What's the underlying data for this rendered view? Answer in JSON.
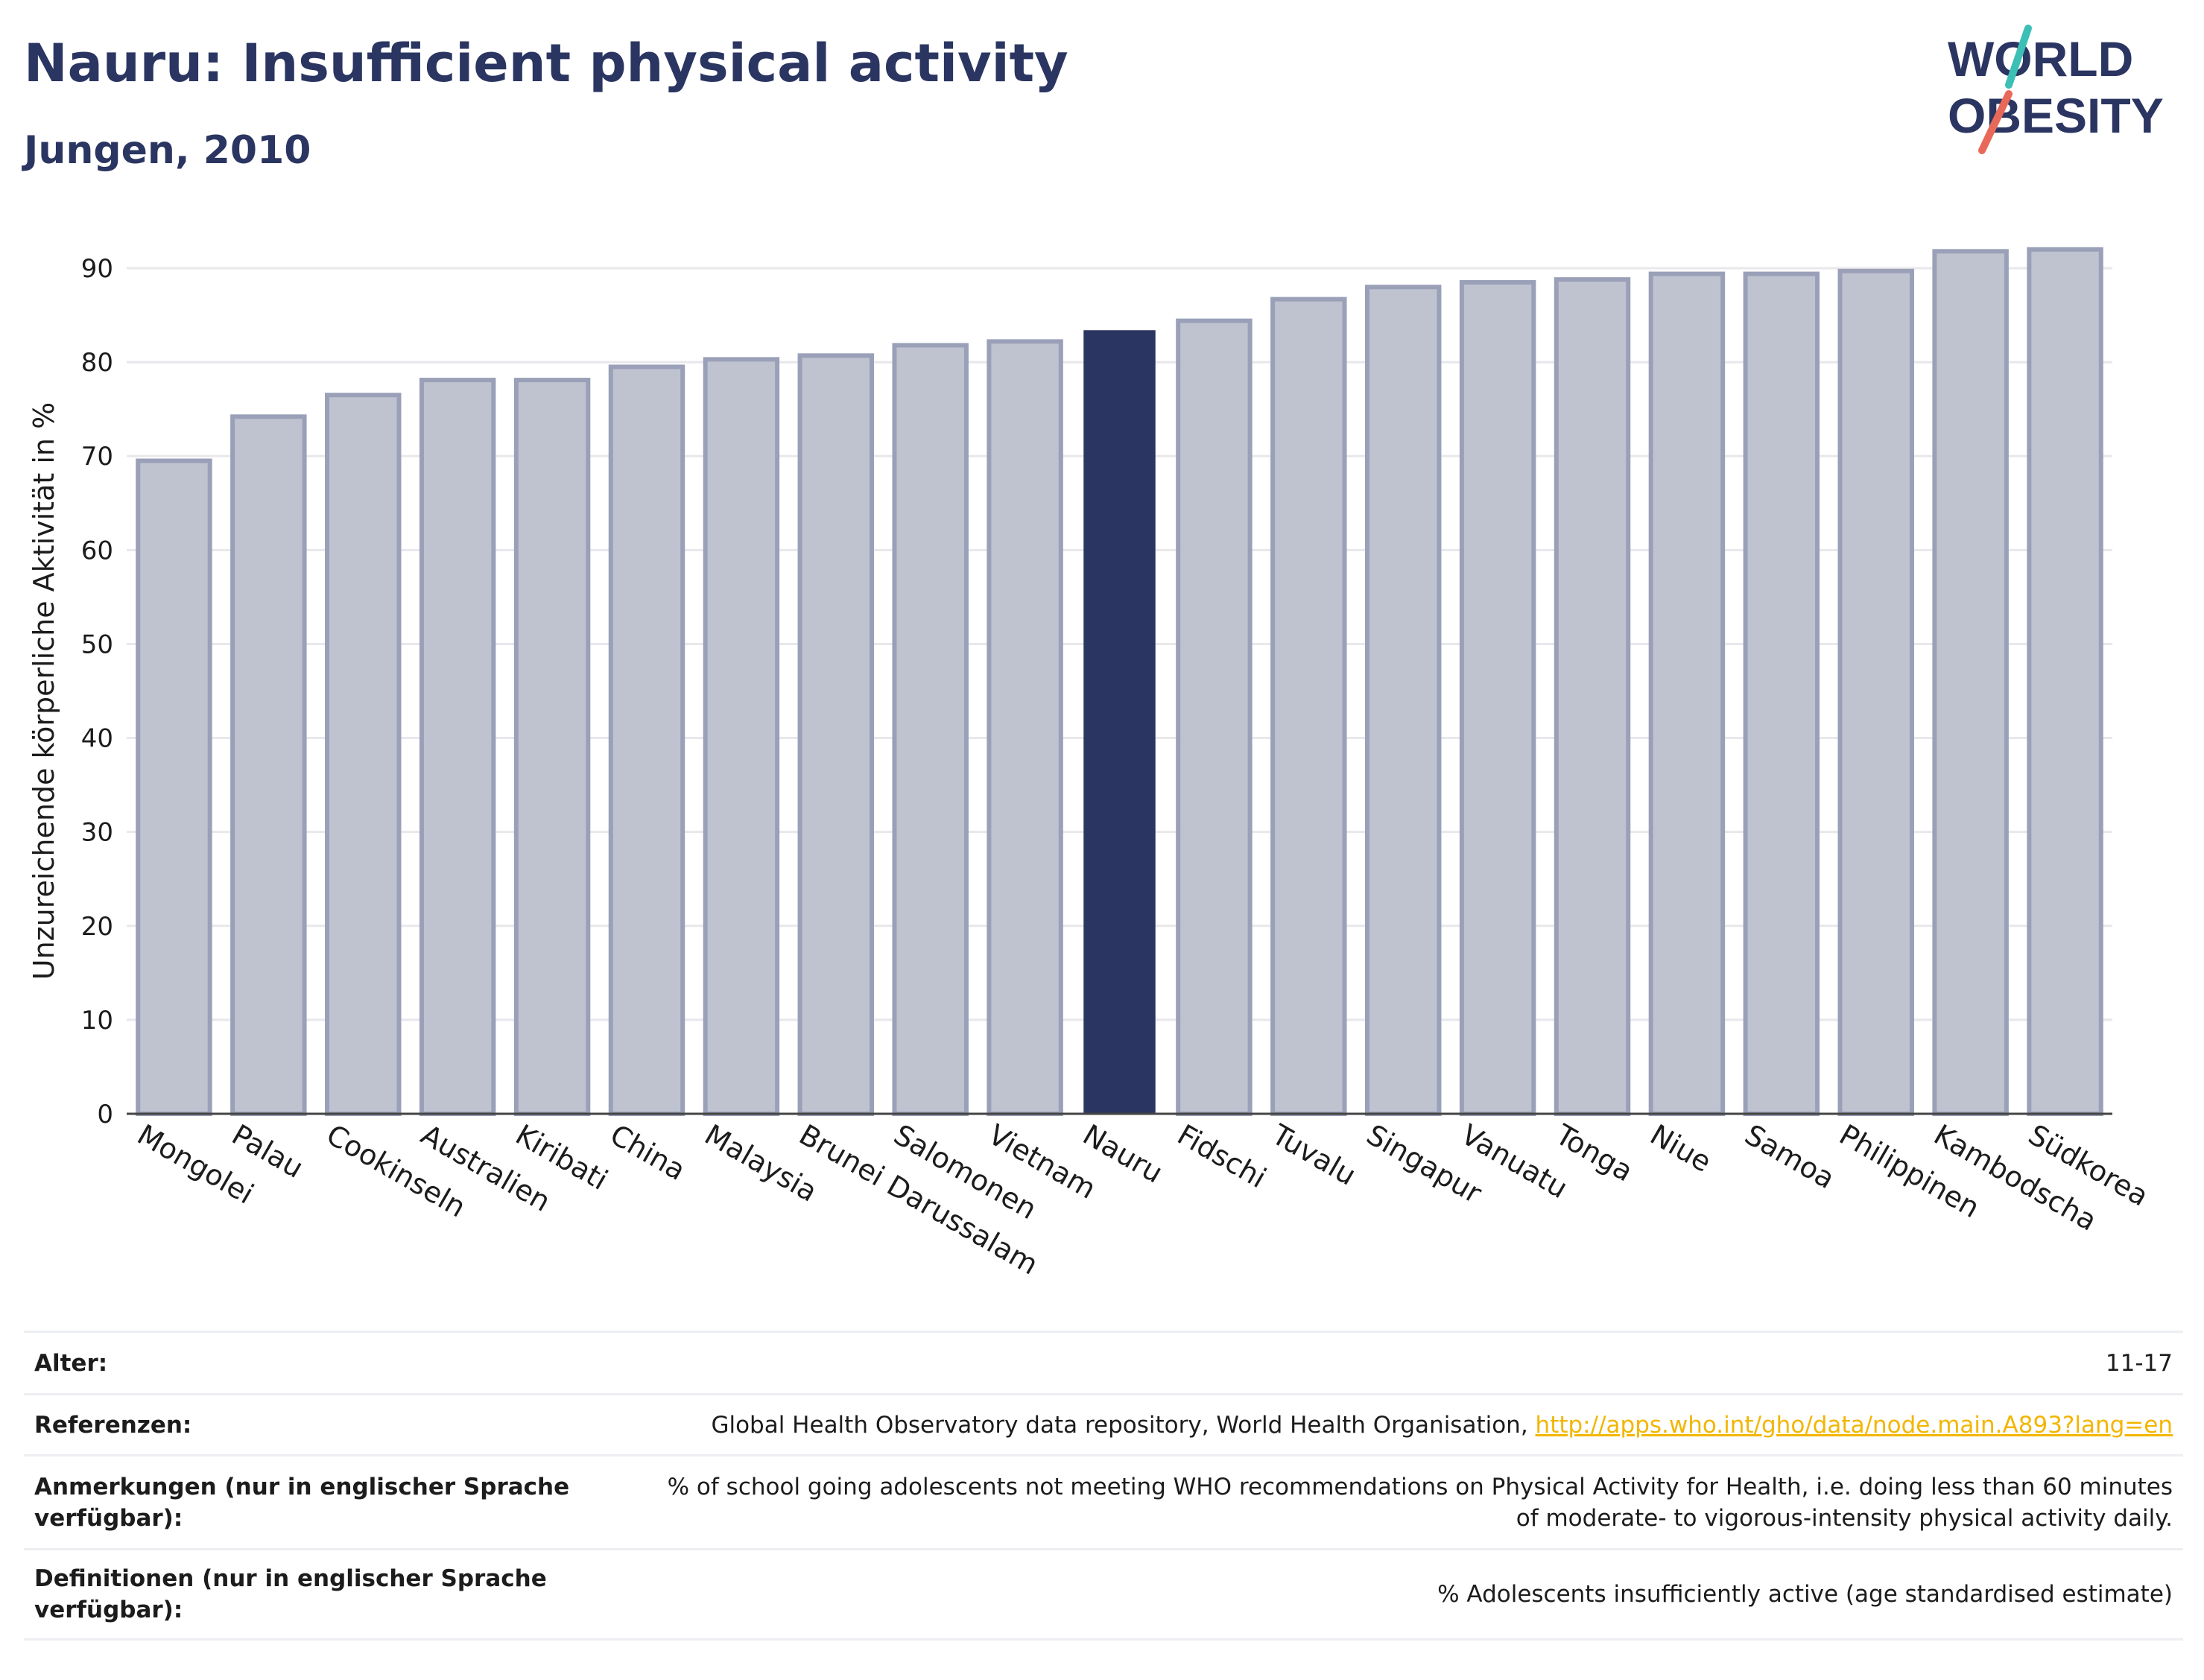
{
  "header": {
    "title": "Nauru: Insufficient physical activity",
    "subtitle": "Jungen, 2010"
  },
  "logo": {
    "line1": "WORLD",
    "line2": "OBESITY",
    "text_color": "#2b3561",
    "slash_colors": [
      "#3cbfb4",
      "#e8695a"
    ]
  },
  "colors": {
    "highlight": "#2b3561",
    "bar": "#bfc3d0",
    "bar_stroke": "#9aa0b8",
    "grid": "#e8e8ec"
  },
  "chart_data": {
    "type": "bar",
    "ylabel": "Unzureichende körperliche Aktivität in %",
    "ylim": [
      0,
      95
    ],
    "yticks": [
      0,
      10,
      20,
      30,
      40,
      50,
      60,
      70,
      80,
      90
    ],
    "grid": true,
    "highlight": "Nauru",
    "categories": [
      "Mongolei",
      "Palau",
      "Cookinseln",
      "Australien",
      "Kiribati",
      "China",
      "Malaysia",
      "Brunei Darussalam",
      "Salomonen",
      "Vietnam",
      "Nauru",
      "Fidschi",
      "Tuvalu",
      "Singapur",
      "Vanuatu",
      "Tonga",
      "Niue",
      "Samoa",
      "Philippinen",
      "Kambodscha",
      "Südkorea"
    ],
    "values": [
      69.5,
      74.2,
      76.5,
      78.1,
      78.1,
      79.5,
      80.3,
      80.7,
      81.8,
      82.2,
      83.4,
      84.4,
      86.7,
      88.0,
      88.5,
      88.8,
      89.4,
      89.4,
      89.7,
      91.8,
      92.0
    ]
  },
  "table": [
    {
      "key": "Alter:",
      "value": "11-17"
    },
    {
      "key": "Referenzen:",
      "value": "Global Health Observatory data repository, World Health Organisation, ",
      "link": "http://apps.who.int/gho/data/node.main.A893?lang=en"
    },
    {
      "key": "Anmerkungen (nur in englischer Sprache verfügbar):",
      "value": "% of school going adolescents not meeting WHO recommendations on Physical Activity for Health, i.e. doing less than 60 minutes of moderate- to vigorous-intensity physical activity daily."
    },
    {
      "key": "Definitionen (nur in englischer Sprache verfügbar):",
      "value": "% Adolescents insufficiently active (age standardised estimate)"
    }
  ]
}
